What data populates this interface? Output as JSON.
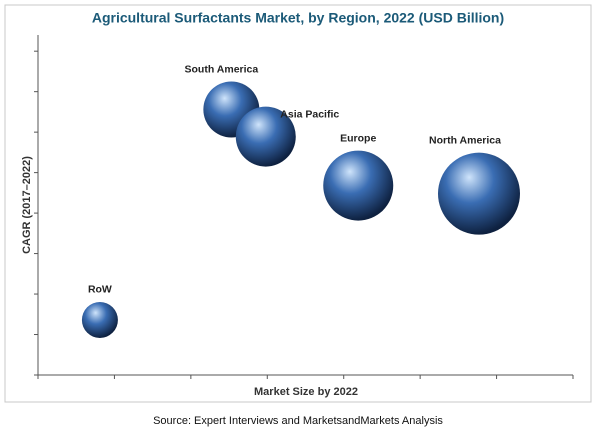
{
  "chart_data": {
    "type": "bubble",
    "title": "Agricultural Surfactants Market, by Region, 2022 (USD Billion)",
    "x_label": "Market Size by 2022",
    "y_label": "CAGR (2017–2022)",
    "source": "Source: Expert Interviews and MarketsandMarkets Analysis",
    "labels": [
      "RoW",
      "South America",
      "Asia Pacific",
      "Europe",
      "North America"
    ],
    "x": [
      0.81,
      2.53,
      2.98,
      4.19,
      5.77
    ],
    "values": [
      1.36,
      6.56,
      5.89,
      4.68,
      4.48
    ],
    "sizes": [
      18,
      28,
      30,
      35,
      41
    ],
    "color": "#3a6db3",
    "xlim": [
      0,
      7
    ],
    "xticks": [
      0,
      1,
      2,
      3,
      4,
      5,
      6,
      7
    ],
    "ylim": [
      0,
      8.4
    ],
    "yticks": [
      0,
      1,
      2,
      3,
      4,
      5,
      6,
      7,
      8
    ]
  }
}
